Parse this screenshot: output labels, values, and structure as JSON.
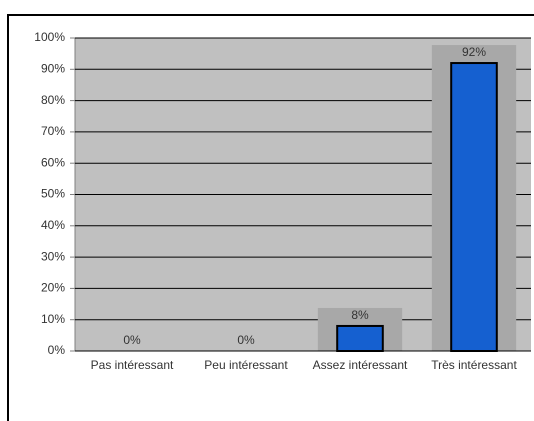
{
  "chart_data": {
    "type": "bar",
    "categories": [
      "Pas intéressant",
      "Peu intéressant",
      "Assez intéressant",
      "Très intéressant"
    ],
    "values": [
      0,
      0,
      8,
      92
    ],
    "value_labels": [
      "0%",
      "0%",
      "8%",
      "92%"
    ],
    "color": "#1560d0",
    "ylim": [
      0,
      100
    ],
    "yticks": [
      {
        "value": 0,
        "label": "0%"
      },
      {
        "value": 10,
        "label": "10%"
      },
      {
        "value": 20,
        "label": "20%"
      },
      {
        "value": 30,
        "label": "30%"
      },
      {
        "value": 40,
        "label": "40%"
      },
      {
        "value": 50,
        "label": "50%"
      },
      {
        "value": 60,
        "label": "60%"
      },
      {
        "value": 70,
        "label": "70%"
      },
      {
        "value": 80,
        "label": "80%"
      },
      {
        "value": 90,
        "label": "90%"
      },
      {
        "value": 100,
        "label": "100%"
      }
    ],
    "grid": true
  }
}
